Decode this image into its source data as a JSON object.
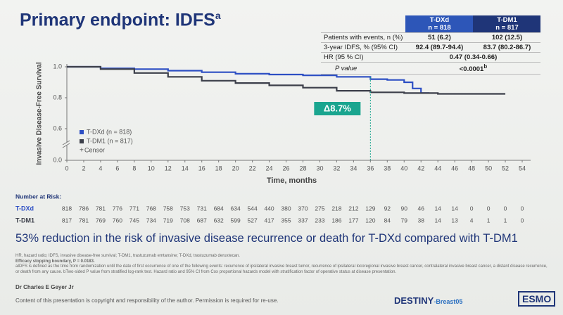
{
  "title": "Primary endpoint: IDFS",
  "title_superscript": "a",
  "table": {
    "headers": [
      {
        "arm": "T-DXd",
        "n": "n = 818"
      },
      {
        "arm": "T-DM1",
        "n": "n = 817"
      }
    ],
    "rows": [
      [
        "Patients with events, n (%)",
        "51 (6.2)",
        "102 (12.5)"
      ],
      [
        "3-year IDFS, % (95% CI)",
        "92.4 (89.7-94.4)",
        "83.7 (80.2-86.7)"
      ]
    ],
    "hr": {
      "label": "HR (95 % CI)",
      "value": "0.47 (0.34-0.66)"
    },
    "p": {
      "label": "P value",
      "value": "<0.0001",
      "superscript": "b"
    }
  },
  "chart_data": {
    "type": "line",
    "y_label": "Invasive Disease-Free Survival",
    "x_label": "Time, months",
    "xlim": [
      0,
      55
    ],
    "xticks": [
      0,
      2,
      4,
      6,
      8,
      10,
      12,
      14,
      16,
      18,
      20,
      22,
      24,
      26,
      28,
      30,
      32,
      34,
      36,
      38,
      40,
      42,
      44,
      46,
      48,
      50,
      52,
      54
    ],
    "ylim": [
      0,
      1
    ],
    "yticks": [
      {
        "value": 0,
        "label": "0.0"
      },
      0.6,
      0.8,
      {
        "value": 1,
        "label": "1.0"
      }
    ],
    "y_break": true,
    "series": [
      {
        "name": "T-DXd (n = 818)",
        "color": "#2d4fc4",
        "x": [
          0,
          4,
          8,
          12,
          16,
          20,
          24,
          28,
          32,
          36,
          38,
          40,
          41,
          42,
          43
        ],
        "values": [
          1,
          0.99,
          0.985,
          0.975,
          0.965,
          0.955,
          0.95,
          0.945,
          0.935,
          0.92,
          0.915,
          0.9,
          0.86,
          0.83,
          0.83
        ]
      },
      {
        "name": "T-DM1 (n = 817)",
        "color": "#3c3f4a",
        "x": [
          0,
          4,
          8,
          12,
          16,
          20,
          24,
          28,
          32,
          36,
          40,
          44,
          48,
          52
        ],
        "values": [
          1,
          0.985,
          0.96,
          0.935,
          0.91,
          0.895,
          0.88,
          0.865,
          0.845,
          0.835,
          0.83,
          0.825,
          0.825,
          0.825
        ]
      }
    ],
    "censor_label": "Censor",
    "annotation": {
      "label": "Δ8.7%",
      "x": 36
    }
  },
  "risk_table": {
    "title": "Number at Risk:",
    "rows": [
      {
        "name": "T-DXd",
        "values": [
          818,
          786,
          781,
          776,
          771,
          768,
          758,
          753,
          731,
          684,
          634,
          544,
          440,
          380,
          370,
          275,
          218,
          212,
          129,
          92,
          90,
          46,
          14,
          14,
          0,
          0,
          0,
          0
        ]
      },
      {
        "name": "T-DM1",
        "values": [
          817,
          781,
          769,
          760,
          745,
          734,
          719,
          708,
          687,
          632,
          599,
          527,
          417,
          355,
          337,
          233,
          186,
          177,
          120,
          84,
          79,
          38,
          14,
          13,
          4,
          1,
          1,
          0
        ]
      }
    ]
  },
  "conclusion": "53% reduction in the risk of invasive disease recurrence or death for T-DXd compared with T-DM1",
  "footnotes": {
    "abbreviations": "HR, hazard ratio; IDFS, invasive disease-free survival; T-DM1, trastuzumab emtansine; T-DXd, trastuzumab deruxtecan.",
    "boundary": "Efficacy stopping boundary, P = 0.0183.",
    "definition": "aIDFS is defined as the time from randomization until the date of first occurrence of one of the following events: recurrence of ipsilateral invasive breast tumor, recurrence of ipsilateral locoregional invasive breast cancer, contralateral invasive breast cancer, a distant disease recurrence, or death from any cause. bTwo-sided P value from stratified log-rank test. Hazard ratio and 95% CI from Cox proportional hazards model with stratification factor of operative status at disease presentation."
  },
  "presenter": "Dr Charles E Geyer Jr",
  "copyright": "Content of this presentation is copyright and responsibility of the author. Permission is required for re-use.",
  "logos": {
    "trial": "DESTINY",
    "trial_suffix": "-Breast05",
    "society": "ESMO"
  }
}
